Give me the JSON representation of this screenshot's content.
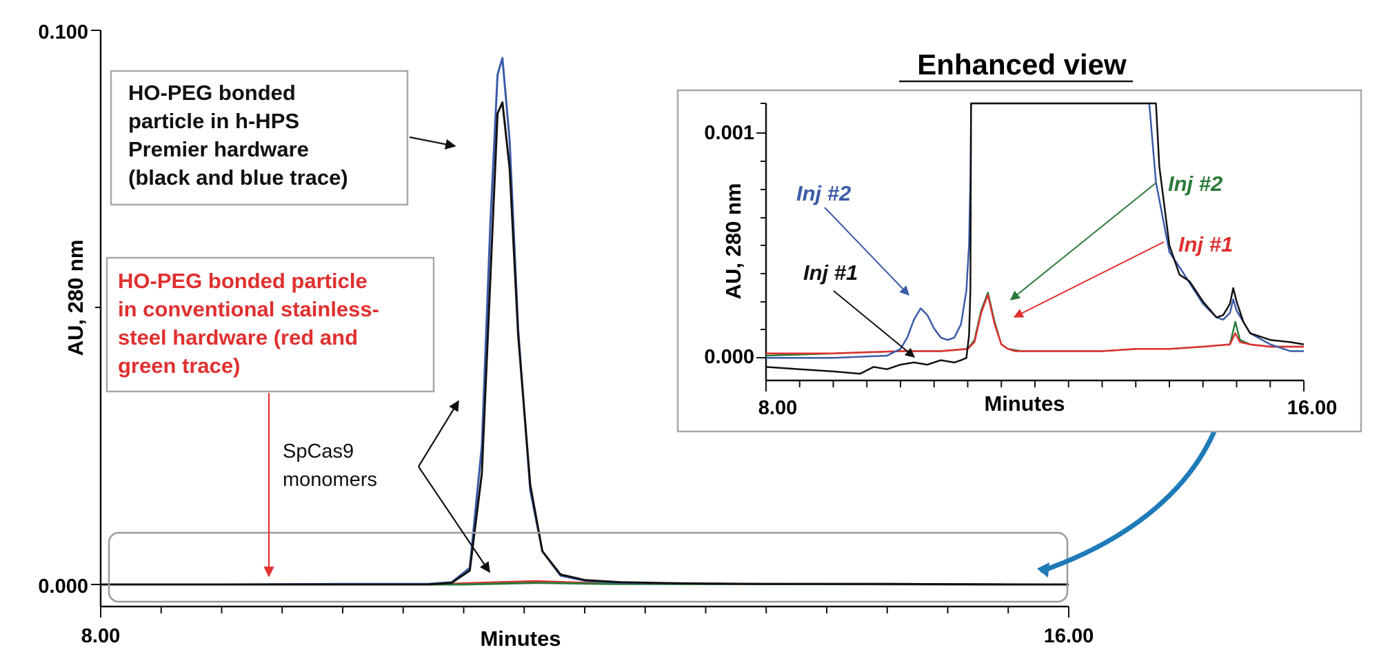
{
  "colors": {
    "black_trace": "#111111",
    "blue_trace": "#3a5ba8",
    "red_trace": "#e03030",
    "green_trace": "#2a7a3a",
    "box_border": "#a8a8a8",
    "curved_arrow": "#1f7ab8"
  },
  "main": {
    "xlabel": "Minutes",
    "ylabel": "AU, 280 nm",
    "x_tick_labels": [
      "8.00",
      "16.00"
    ],
    "y_tick_labels": [
      "0.100",
      "0.000"
    ],
    "callout_premier": [
      "HO-PEG bonded",
      "particle in h-HPS",
      "Premier hardware",
      "(black and blue trace)"
    ],
    "callout_stainless": [
      "HO-PEG bonded particle",
      "in conventional stainless-",
      "steel hardware (red and",
      "green trace)"
    ],
    "monomer_label": [
      "SpCas9",
      "monomers"
    ]
  },
  "inset": {
    "title": "Enhanced view",
    "xlabel": "Minutes",
    "ylabel": "AU, 280 nm",
    "x_tick_labels": [
      "8.00",
      "16.00"
    ],
    "y_tick_labels": [
      "0.001",
      "0.000"
    ],
    "labels": {
      "blue_inj2": "Inj #2",
      "black_inj1": "Inj #1",
      "green_inj2": "Inj #2",
      "red_inj1": "Inj #1"
    }
  },
  "chart_data": [
    {
      "type": "line",
      "title": "",
      "xlabel": "Minutes",
      "ylabel": "AU, 280 nm",
      "xlim": [
        8.0,
        16.0
      ],
      "ylim": [
        0.0,
        0.1
      ],
      "series": [
        {
          "name": "h-HPS Premier, Inj #1 (black)",
          "color": "#111111",
          "x": [
            8.0,
            9.0,
            10.0,
            10.7,
            10.9,
            11.05,
            11.15,
            11.22,
            11.28,
            11.32,
            11.38,
            11.45,
            11.55,
            11.65,
            11.8,
            12.0,
            12.3,
            12.8,
            13.5,
            14.5,
            15.5,
            16.0
          ],
          "y": [
            0.0,
            0.0,
            0.0,
            0.0,
            0.0003,
            0.0025,
            0.02,
            0.055,
            0.085,
            0.087,
            0.075,
            0.045,
            0.018,
            0.006,
            0.0018,
            0.0008,
            0.0004,
            0.0002,
            0.0001,
            0.0001,
            0.0,
            0.0
          ]
        },
        {
          "name": "h-HPS Premier, Inj #2 (blue)",
          "color": "#3a5ba8",
          "x": [
            8.0,
            9.0,
            10.0,
            10.7,
            10.9,
            11.05,
            11.15,
            11.22,
            11.28,
            11.32,
            11.38,
            11.45,
            11.55,
            11.65,
            11.8,
            12.0,
            12.3,
            12.8,
            13.5,
            14.5,
            15.5,
            16.0
          ],
          "y": [
            0.0,
            0.0,
            0.0001,
            0.0001,
            0.0004,
            0.003,
            0.025,
            0.065,
            0.092,
            0.095,
            0.08,
            0.046,
            0.017,
            0.006,
            0.0016,
            0.0007,
            0.0003,
            0.0002,
            0.0001,
            0.0001,
            0.0,
            0.0
          ]
        },
        {
          "name": "Stainless steel, Inj #1 (red)",
          "color": "#e03030",
          "x": [
            8.0,
            10.8,
            11.0,
            11.3,
            11.6,
            12.0,
            12.5,
            13.0,
            16.0
          ],
          "y": [
            0.0,
            0.0,
            0.0002,
            0.0004,
            0.0006,
            0.0003,
            0.0002,
            0.0001,
            0.0
          ]
        },
        {
          "name": "Stainless steel, Inj #2 (green)",
          "color": "#2a7a3a",
          "x": [
            8.0,
            11.0,
            11.6,
            12.2,
            16.0
          ],
          "y": [
            0.0,
            0.0,
            0.0003,
            0.0001,
            0.0
          ]
        }
      ],
      "annotations": [
        "SpCas9 monomers"
      ]
    },
    {
      "type": "line",
      "title": "Enhanced view",
      "xlabel": "Minutes",
      "ylabel": "AU, 280 nm",
      "xlim": [
        8.0,
        16.0
      ],
      "ylim": [
        -0.0001,
        0.00113
      ],
      "series": [
        {
          "name": "Inj #1 (black)",
          "color": "#111111",
          "x": [
            8.0,
            8.5,
            9.0,
            9.4,
            9.6,
            9.8,
            10.0,
            10.2,
            10.4,
            10.6,
            10.8,
            10.9,
            10.98,
            11.02,
            11.04,
            11.05,
            13.8,
            13.85,
            14.0,
            14.15,
            14.3,
            14.5,
            14.7,
            14.8,
            14.9,
            14.95,
            15.0,
            15.1,
            15.2,
            15.5,
            15.8,
            16.0
          ],
          "y": [
            -4e-05,
            -5e-05,
            -6e-05,
            -7e-05,
            -4e-05,
            -5e-05,
            -3e-05,
            -2e-05,
            -3e-05,
            -1e-05,
            -2e-05,
            -1e-05,
            0.0,
            0.0001,
            0.0003,
            0.00113,
            0.00113,
            0.00085,
            0.0005,
            0.00037,
            0.00034,
            0.00025,
            0.00018,
            0.00019,
            0.00024,
            0.00031,
            0.00025,
            0.00016,
            0.00011,
            8e-05,
            7e-05,
            6e-05
          ]
        },
        {
          "name": "Inj #2 (blue)",
          "color": "#3a5ba8",
          "x": [
            8.0,
            9.0,
            9.8,
            10.0,
            10.1,
            10.2,
            10.3,
            10.4,
            10.5,
            10.6,
            10.7,
            10.8,
            10.9,
            10.98,
            11.02,
            11.04,
            11.05,
            13.7,
            13.8,
            14.0,
            14.2,
            14.5,
            14.7,
            14.8,
            14.9,
            14.95,
            15.0,
            15.2,
            15.5,
            15.8,
            16.0
          ],
          "y": [
            0.0,
            0.0,
            1e-05,
            4e-05,
            9e-05,
            0.00017,
            0.00022,
            0.00019,
            0.00013,
            9e-05,
            8e-05,
            9e-05,
            0.00015,
            0.0003,
            0.0005,
            0.0008,
            0.00113,
            0.00113,
            0.00078,
            0.00047,
            0.00038,
            0.00024,
            0.00018,
            0.00017,
            0.0002,
            0.00026,
            0.00021,
            0.00011,
            6e-05,
            3e-05,
            3e-05
          ]
        },
        {
          "name": "Inj #1 (red)",
          "color": "#e03030",
          "x": [
            8.0,
            9.0,
            10.0,
            10.6,
            11.0,
            11.1,
            11.2,
            11.3,
            11.4,
            11.5,
            11.6,
            11.7,
            11.8,
            12.0,
            12.5,
            13.0,
            13.5,
            14.0,
            14.5,
            14.9,
            14.98,
            15.05,
            15.2,
            15.5,
            16.0
          ],
          "y": [
            2e-05,
            2e-05,
            3e-05,
            3e-05,
            4e-05,
            7e-05,
            0.0002,
            0.00028,
            0.00015,
            6e-05,
            4e-05,
            3e-05,
            3e-05,
            3e-05,
            3e-05,
            3e-05,
            4e-05,
            4e-05,
            5e-05,
            6e-05,
            0.00011,
            7e-05,
            6e-05,
            5e-05,
            5e-05
          ]
        },
        {
          "name": "Inj #2 (green)",
          "color": "#2a7a3a",
          "x": [
            8.0,
            9.0,
            10.0,
            10.6,
            11.0,
            11.1,
            11.2,
            11.3,
            11.4,
            11.5,
            11.6,
            11.8,
            12.0,
            12.5,
            13.0,
            13.5,
            14.0,
            14.5,
            14.9,
            14.98,
            15.05,
            15.2,
            15.5,
            16.0
          ],
          "y": [
            1e-05,
            2e-05,
            3e-05,
            3e-05,
            4e-05,
            8e-05,
            0.00021,
            0.00029,
            0.00016,
            6e-05,
            4e-05,
            3e-05,
            3e-05,
            3e-05,
            3e-05,
            4e-05,
            4e-05,
            5e-05,
            6e-05,
            0.00016,
            8e-05,
            6e-05,
            5e-05,
            5e-05
          ]
        }
      ],
      "annotations": [
        "Inj #2",
        "Inj #1",
        "Inj #2",
        "Inj #1"
      ]
    }
  ]
}
